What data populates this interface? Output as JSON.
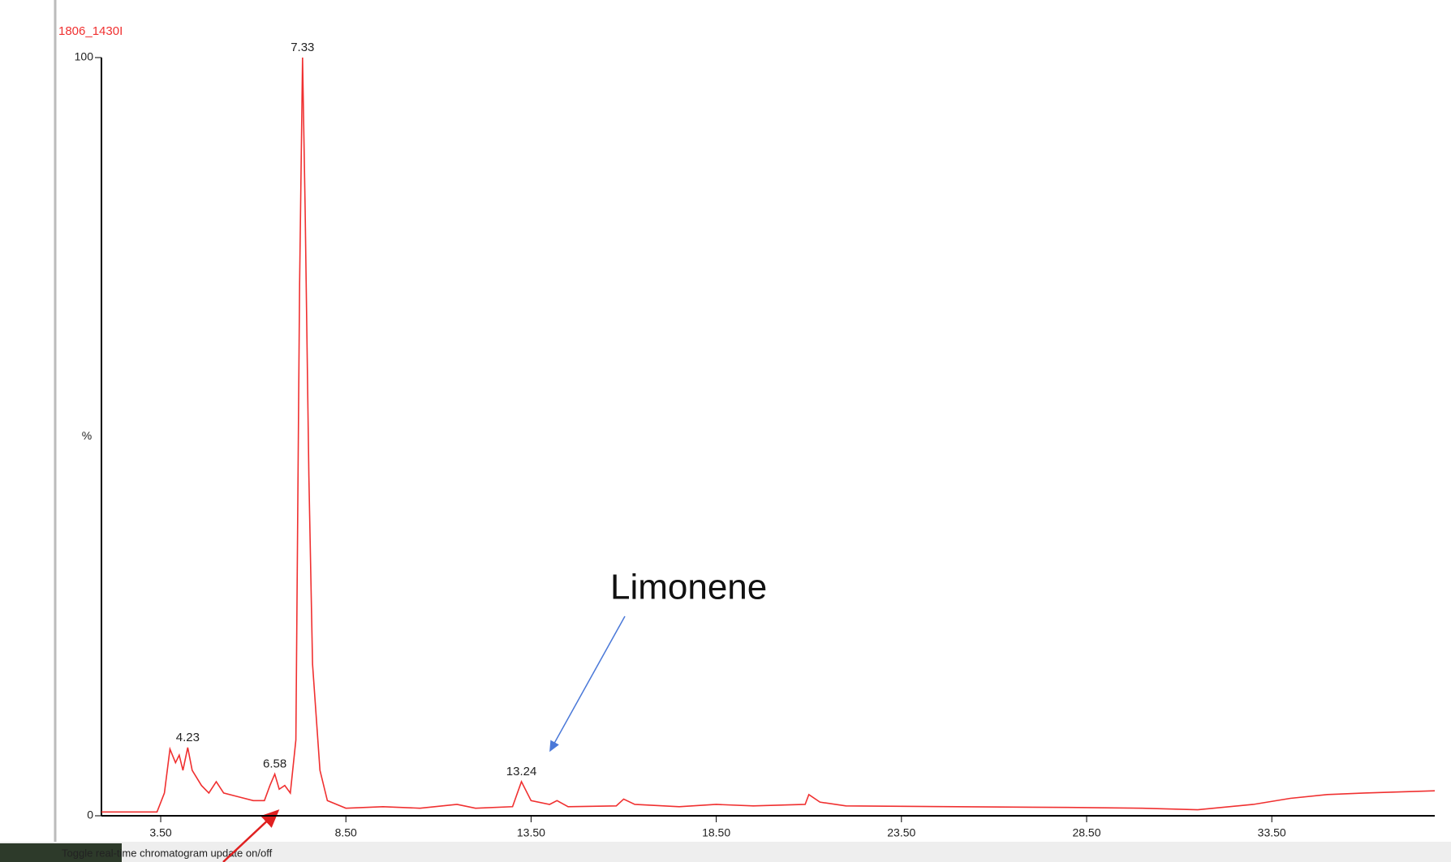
{
  "chart_data": {
    "type": "line",
    "title": "1806_1430I",
    "y_label": "%",
    "annotation": "Limonene",
    "status_text": "Toggle real-time chromatogram update on/off",
    "xlim": [
      1.9,
      37.9
    ],
    "ylim": [
      0,
      100
    ],
    "yticks": [
      0,
      100
    ],
    "xticks": [
      {
        "value": 3.5,
        "label": "3.50"
      },
      {
        "value": 8.5,
        "label": "8.50"
      },
      {
        "value": 13.5,
        "label": "13.50"
      },
      {
        "value": 18.5,
        "label": "18.50"
      },
      {
        "value": 23.5,
        "label": "23.50"
      },
      {
        "value": 28.5,
        "label": "28.50"
      },
      {
        "value": 33.5,
        "label": "33.50"
      }
    ],
    "series": [
      {
        "name": "1806_1430I",
        "color": "#f03030",
        "x": [
          1.9,
          3.4,
          3.6,
          3.75,
          3.9,
          4.0,
          4.1,
          4.23,
          4.35,
          4.6,
          4.8,
          5.0,
          5.2,
          5.6,
          6.0,
          6.3,
          6.45,
          6.58,
          6.7,
          6.85,
          7.0,
          7.15,
          7.25,
          7.33,
          7.4,
          7.5,
          7.6,
          7.8,
          8.0,
          8.5,
          9.5,
          10.5,
          11.5,
          12.0,
          13.0,
          13.24,
          13.5,
          14.0,
          14.2,
          14.5,
          15.8,
          16.0,
          16.3,
          17.5,
          18.5,
          19.5,
          20.9,
          21.0,
          21.3,
          22.0,
          25.0,
          28.0,
          30.0,
          31.5,
          33.0,
          34.0,
          35.0,
          36.0,
          37.9
        ],
        "values": [
          0.5,
          0.5,
          3,
          8.8,
          7,
          8,
          6,
          9,
          6,
          4,
          3,
          4.5,
          3,
          2.5,
          2,
          2,
          4,
          5.5,
          3.5,
          4,
          3,
          10,
          70,
          100,
          80,
          45,
          20,
          6,
          2,
          1,
          1.2,
          1,
          1.5,
          1,
          1.2,
          4.5,
          2,
          1.5,
          2,
          1.2,
          1.3,
          2.2,
          1.5,
          1.2,
          1.5,
          1.3,
          1.5,
          2.8,
          1.8,
          1.3,
          1.2,
          1.1,
          1,
          0.8,
          1.5,
          2.3,
          2.8,
          3,
          3.3
        ]
      }
    ],
    "peaks": [
      {
        "x": 7.33,
        "y": 100
      },
      {
        "x": 4.23,
        "y": 9
      },
      {
        "x": 6.58,
        "y": 5.5
      },
      {
        "x": 13.24,
        "y": 4.5
      }
    ]
  }
}
